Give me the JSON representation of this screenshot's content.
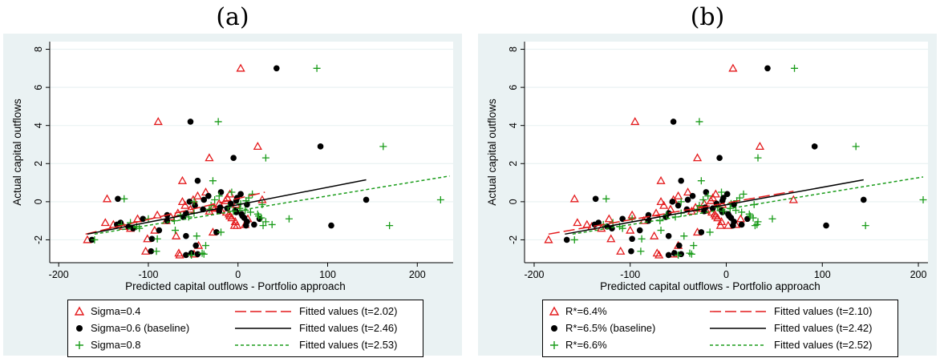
{
  "chart_data": [
    {
      "type": "scatter",
      "panel_label": "(a)",
      "xlabel": "Predicted capital outflows - Portfolio approach",
      "ylabel": "Actual capital outflows",
      "xlim": [
        -210,
        240
      ],
      "ylim": [
        -3.2,
        8.4
      ],
      "xticks": [
        -200,
        -100,
        0,
        100,
        200
      ],
      "yticks": [
        -2,
        0,
        2,
        4,
        6,
        8
      ],
      "grid": "horizontal",
      "legend_placement": "bottom",
      "base_y": [
        -2.0,
        -1.95,
        -2.6,
        -2.7,
        -2.8,
        -2.75,
        -2.3,
        -1.5,
        -1.4,
        -1.2,
        -1.1,
        -1.0,
        -0.8,
        -0.6,
        -0.4,
        -0.2,
        0.0,
        0.1,
        0.3,
        0.5,
        -0.9,
        -0.7,
        -1.3,
        -0.5,
        -0.3,
        -1.6,
        -1.8,
        0.05,
        0.2,
        -0.1,
        -0.35,
        -0.55,
        -0.65,
        -0.85,
        -1.05,
        -1.25,
        0.4,
        -0.15,
        -0.45,
        -0.75,
        1.1,
        2.3,
        4.2,
        7.0,
        2.9,
        0.15,
        -1.25,
        0.1,
        -0.9,
        -1.2
      ],
      "series": [
        {
          "name": "Sigma=0.4",
          "marker": "triangle",
          "color": "#e41a1c",
          "x": [
            -168,
            -101,
            -103,
            -66,
            -65,
            -49,
            -44,
            -93,
            -120,
            -139,
            -148,
            -80,
            -75,
            -67,
            -53,
            -59,
            -62,
            -50,
            -45,
            -36,
            -112,
            -90,
            -128,
            -32,
            -28,
            -28,
            -69,
            -14,
            -12,
            -21,
            -26,
            -13,
            -10,
            -7,
            -3,
            -4,
            -9,
            -2,
            -19,
            -9,
            -62,
            -32,
            -89,
            3,
            22,
            -146,
            -1,
            27,
            11,
            8
          ],
          "fit_name": "Fitted values (t=2.02)",
          "fit_style": "longdash",
          "fit_color": "#e41a1c",
          "fit_x": [
            -170,
            30
          ],
          "fit_y": [
            -1.7,
            0.5
          ]
        },
        {
          "name": "Sigma=0.6 (baseline)",
          "marker": "dot",
          "color": "#000000",
          "x": [
            -163,
            -96,
            -97,
            -52,
            -58,
            -45,
            -47,
            -88,
            -117,
            -135,
            -131,
            -79,
            -61,
            -58,
            -39,
            -48,
            -54,
            -38,
            -33,
            -19,
            -106,
            -79,
            -122,
            -21,
            -20,
            -24,
            -58,
            -2,
            -1,
            -8,
            -12,
            -2,
            4,
            7,
            10,
            9,
            3,
            10,
            -3,
            5,
            -45,
            -5,
            -53,
            43,
            92,
            -134,
            104,
            143,
            24,
            18
          ],
          "fit_name": "Fitted values (t=2.46)",
          "fit_style": "solid",
          "fit_color": "#000000",
          "fit_x": [
            -168,
            143
          ],
          "fit_y": [
            -1.7,
            1.15
          ]
        },
        {
          "name": "Sigma=0.8",
          "marker": "plus",
          "color": "#1a9c1a",
          "x": [
            -160,
            -90,
            -91,
            -40,
            -52,
            -38,
            -36,
            -70,
            -110,
            -130,
            -120,
            -71,
            -55,
            -49,
            -32,
            -30,
            -49,
            -26,
            -21,
            -7,
            -100,
            -64,
            -113,
            -5,
            -11,
            -19,
            -46,
            9,
            12,
            3,
            2,
            14,
            22,
            26,
            31,
            28,
            16,
            27,
            8,
            23,
            -28,
            31,
            -22,
            88,
            162,
            -127,
            169,
            226,
            57,
            38
          ],
          "fit_name": "Fitted values (t=2.53)",
          "fit_style": "shortdash",
          "fit_color": "#1a9c1a",
          "fit_x": [
            -160,
            236
          ],
          "fit_y": [
            -1.7,
            1.35
          ]
        }
      ]
    },
    {
      "type": "scatter",
      "panel_label": "(b)",
      "xlabel": "Predicted capital outflows - Portfolio approach",
      "ylabel": "Actual capital outflows",
      "xlim": [
        -210,
        210
      ],
      "ylim": [
        -3.2,
        8.4
      ],
      "xticks": [
        -200,
        -100,
        0,
        100,
        200
      ],
      "yticks": [
        -2,
        0,
        2,
        4,
        6,
        8
      ],
      "grid": "horizontal",
      "legend_placement": "bottom",
      "base_y": [
        -2.0,
        -1.95,
        -2.6,
        -2.7,
        -2.8,
        -2.75,
        -2.3,
        -1.5,
        -1.4,
        -1.2,
        -1.1,
        -1.0,
        -0.8,
        -0.6,
        -0.4,
        -0.2,
        0.0,
        0.1,
        0.3,
        0.5,
        -0.9,
        -0.7,
        -1.3,
        -0.5,
        -0.3,
        -1.6,
        -1.8,
        0.05,
        0.2,
        -0.1,
        -0.35,
        -0.55,
        -0.65,
        -0.85,
        -1.05,
        -1.25,
        0.4,
        -0.15,
        -0.45,
        -0.75,
        1.1,
        2.3,
        4.2,
        7.0,
        2.9,
        0.15,
        -1.25,
        0.1,
        -0.9,
        -1.2
      ],
      "series": [
        {
          "name": "R*=6.4%",
          "marker": "triangle",
          "color": "#e41a1c",
          "x": [
            -185,
            -120,
            -110,
            -72,
            -70,
            -55,
            -50,
            -100,
            -130,
            -145,
            -155,
            -86,
            -82,
            -73,
            -58,
            -65,
            -68,
            -55,
            -50,
            -40,
            -122,
            -98,
            -140,
            -36,
            -32,
            -30,
            -75,
            -16,
            -14,
            -23,
            -28,
            -15,
            -12,
            -9,
            -5,
            -6,
            -11,
            -4,
            -21,
            -11,
            -68,
            -30,
            -95,
            7,
            35,
            -158,
            2,
            70,
            15,
            10
          ],
          "fit_name": "Fitted values (t=2.10)",
          "fit_style": "longdash",
          "fit_color": "#e41a1c",
          "fit_x": [
            -185,
            70
          ],
          "fit_y": [
            -1.7,
            0.55
          ]
        },
        {
          "name": "R*=6.5% (baseline)",
          "marker": "dot",
          "color": "#000000",
          "x": [
            -166,
            -98,
            -99,
            -54,
            -60,
            -47,
            -49,
            -90,
            -119,
            -137,
            -133,
            -81,
            -63,
            -60,
            -41,
            -50,
            -56,
            -40,
            -35,
            -21,
            -108,
            -81,
            -124,
            -23,
            -22,
            -26,
            -60,
            -4,
            -3,
            -10,
            -14,
            -4,
            2,
            5,
            8,
            7,
            1,
            8,
            -5,
            3,
            -47,
            -7,
            -55,
            43,
            92,
            -136,
            104,
            143,
            22,
            16
          ],
          "fit_name": "Fitted values (t=2.42)",
          "fit_style": "solid",
          "fit_color": "#000000",
          "fit_x": [
            -168,
            143
          ],
          "fit_y": [
            -1.7,
            1.15
          ]
        },
        {
          "name": "R*=6.6%",
          "marker": "plus",
          "color": "#1a9c1a",
          "x": [
            -158,
            -88,
            -89,
            -38,
            -50,
            -36,
            -34,
            -68,
            -108,
            -128,
            -118,
            -69,
            -53,
            -47,
            -30,
            -28,
            -47,
            -24,
            -19,
            -5,
            -98,
            -62,
            -111,
            -3,
            -9,
            -17,
            -44,
            11,
            14,
            5,
            4,
            16,
            24,
            28,
            33,
            30,
            18,
            29,
            10,
            25,
            -26,
            33,
            -28,
            71,
            135,
            -125,
            145,
            205,
            48,
            32
          ],
          "fit_name": "Fitted values (t=2.52)",
          "fit_style": "shortdash",
          "fit_color": "#1a9c1a",
          "fit_x": [
            -160,
            205
          ],
          "fit_y": [
            -1.7,
            1.3
          ]
        }
      ]
    }
  ]
}
